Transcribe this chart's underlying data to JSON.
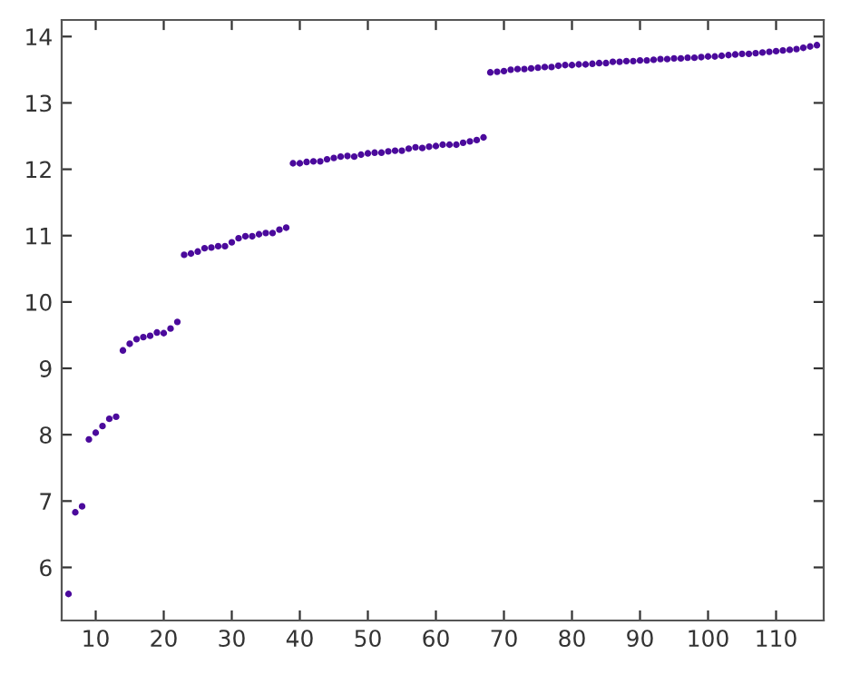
{
  "chart_data": {
    "type": "scatter",
    "marker": "circle",
    "grid": false,
    "legend": false,
    "xlim": [
      5,
      117
    ],
    "ylim": [
      5.2,
      14.25
    ],
    "xticks": [
      10,
      20,
      30,
      40,
      50,
      60,
      70,
      80,
      90,
      100,
      110
    ],
    "yticks": [
      6,
      7,
      8,
      9,
      10,
      11,
      12,
      13,
      14
    ],
    "x": [
      6,
      7,
      8,
      9,
      10,
      11,
      12,
      13,
      14,
      15,
      16,
      17,
      18,
      19,
      20,
      21,
      22,
      23,
      24,
      25,
      26,
      27,
      28,
      29,
      30,
      31,
      32,
      33,
      34,
      35,
      36,
      37,
      38,
      39,
      40,
      41,
      42,
      43,
      44,
      45,
      46,
      47,
      48,
      49,
      50,
      51,
      52,
      53,
      54,
      55,
      56,
      57,
      58,
      59,
      60,
      61,
      62,
      63,
      64,
      65,
      66,
      67,
      68,
      69,
      70,
      71,
      72,
      73,
      74,
      75,
      76,
      77,
      78,
      79,
      80,
      81,
      82,
      83,
      84,
      85,
      86,
      87,
      88,
      89,
      90,
      91,
      92,
      93,
      94,
      95,
      96,
      97,
      98,
      99,
      100,
      101,
      102,
      103,
      104,
      105,
      106,
      107,
      108,
      109,
      110,
      111,
      112,
      113,
      114,
      115,
      116
    ],
    "series": [
      {
        "color": "#4b0a9c",
        "values": [
          5.6,
          6.83,
          6.92,
          7.93,
          8.03,
          8.13,
          8.24,
          8.27,
          9.27,
          9.37,
          9.44,
          9.47,
          9.49,
          9.54,
          9.53,
          9.6,
          9.7,
          10.71,
          10.73,
          10.76,
          10.81,
          10.82,
          10.84,
          10.84,
          10.9,
          10.96,
          10.99,
          10.99,
          11.02,
          11.04,
          11.04,
          11.09,
          11.12,
          12.09,
          12.09,
          12.11,
          12.12,
          12.12,
          12.15,
          12.17,
          12.19,
          12.2,
          12.19,
          12.22,
          12.24,
          12.25,
          12.25,
          12.27,
          12.28,
          12.28,
          12.31,
          12.33,
          12.32,
          12.34,
          12.35,
          12.37,
          12.37,
          12.37,
          12.4,
          12.42,
          12.44,
          12.48,
          13.46,
          13.47,
          13.48,
          13.5,
          13.51,
          13.51,
          13.52,
          13.53,
          13.54,
          13.54,
          13.56,
          13.57,
          13.57,
          13.58,
          13.58,
          13.59,
          13.6,
          13.6,
          13.62,
          13.62,
          13.63,
          13.63,
          13.64,
          13.64,
          13.65,
          13.66,
          13.66,
          13.67,
          13.67,
          13.68,
          13.68,
          13.69,
          13.7,
          13.7,
          13.71,
          13.72,
          13.73,
          13.74,
          13.74,
          13.75,
          13.76,
          13.77,
          13.78,
          13.79,
          13.8,
          13.81,
          13.83,
          13.85,
          13.87
        ]
      }
    ]
  }
}
